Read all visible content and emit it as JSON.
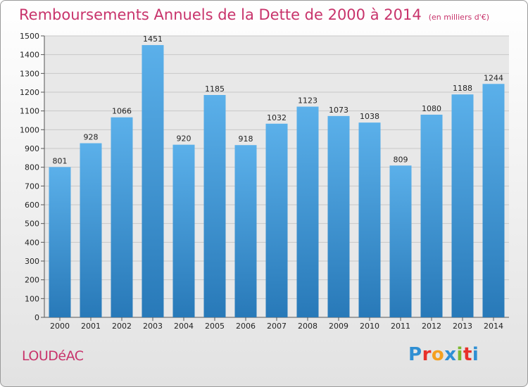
{
  "title": "Remboursements Annuels de la Dette de 2000 à 2014",
  "subtitle": "(en milliers d'€)",
  "commune": "LOUDéAC",
  "logo": {
    "letters": [
      "P",
      "r",
      "o",
      "x",
      "i",
      "t",
      "i"
    ],
    "colors": [
      "#2f8fd3",
      "#e8302a",
      "#f4a020",
      "#2f8fd3",
      "#7cb82f",
      "#e8302a",
      "#2f8fd3"
    ]
  },
  "colors": {
    "bar_light": "#5bb0ea",
    "bar_dark": "#2879b8",
    "title": "#c8336b",
    "grid": "#c8c8c8"
  },
  "chart_data": {
    "type": "bar",
    "title": "Remboursements Annuels de la Dette de 2000 à 2014",
    "subtitle": "(en milliers d'€)",
    "xlabel": "",
    "ylabel": "",
    "categories": [
      "2000",
      "2001",
      "2002",
      "2003",
      "2004",
      "2005",
      "2006",
      "2007",
      "2008",
      "2009",
      "2010",
      "2011",
      "2012",
      "2013",
      "2014"
    ],
    "values": [
      801,
      928,
      1066,
      1451,
      920,
      1185,
      918,
      1032,
      1123,
      1073,
      1038,
      809,
      1080,
      1188,
      1244
    ],
    "ylim": [
      0,
      1500
    ],
    "yticks": [
      0,
      100,
      200,
      300,
      400,
      500,
      600,
      700,
      800,
      900,
      1000,
      1100,
      1200,
      1300,
      1400,
      1500
    ],
    "grid": true,
    "data_labels": true
  }
}
